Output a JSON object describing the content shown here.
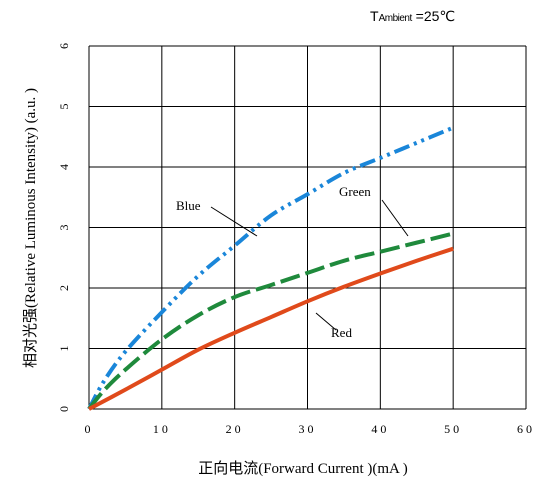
{
  "chart_data": {
    "type": "line",
    "xlabel": "正向电流(Forward  Current )(mA )",
    "ylabel": "相对光强(Relative Luminous  Intensity) (a.u. )",
    "xlim": [
      0,
      60
    ],
    "ylim": [
      0,
      6
    ],
    "x_ticks": [
      "0",
      "10",
      "20",
      "30",
      "40",
      "50",
      "60"
    ],
    "y_ticks": [
      "0",
      "1",
      "2",
      "3",
      "4",
      "5",
      "6"
    ],
    "grid": true,
    "annotation": {
      "prefix": "T",
      "sub": "Ambient",
      "value": " =25℃"
    },
    "series": [
      {
        "name": "Blue",
        "color": "#1a86d9",
        "style": "dash-dot-dot",
        "x": [
          0,
          2,
          5,
          10,
          15,
          20,
          25,
          30,
          35,
          40,
          45,
          50
        ],
        "y": [
          0,
          0.45,
          0.95,
          1.6,
          2.2,
          2.7,
          3.2,
          3.55,
          3.9,
          4.15,
          4.4,
          4.65
        ]
      },
      {
        "name": "Green",
        "color": "#1f8a3c",
        "style": "long-dash",
        "x": [
          0,
          2,
          5,
          10,
          15,
          20,
          25,
          30,
          35,
          40,
          45,
          50
        ],
        "y": [
          0,
          0.3,
          0.65,
          1.15,
          1.55,
          1.85,
          2.05,
          2.25,
          2.45,
          2.6,
          2.75,
          2.9
        ]
      },
      {
        "name": "Red",
        "color": "#e04a1b",
        "style": "solid",
        "x": [
          0,
          5,
          10,
          15,
          20,
          25,
          30,
          35,
          40,
          45,
          50
        ],
        "y": [
          0,
          0.32,
          0.65,
          0.98,
          1.26,
          1.52,
          1.78,
          2.02,
          2.24,
          2.45,
          2.65
        ]
      }
    ],
    "labels": [
      {
        "text": "Blue"
      },
      {
        "text": "Green"
      },
      {
        "text": "Red"
      }
    ]
  }
}
